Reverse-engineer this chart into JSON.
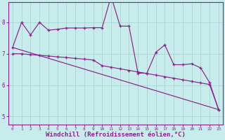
{
  "background_color": "#c8ecec",
  "line_color": "#882288",
  "grid_color": "#b8dada",
  "xlabel": "Windchill (Refroidissement éolien,°C)",
  "xlabel_fontsize": 6.5,
  "ylim": [
    4.75,
    8.65
  ],
  "xlim": [
    -0.5,
    23.5
  ],
  "yticks": [
    5,
    6,
    7,
    8
  ],
  "s1": [
    7.2,
    8.0,
    7.6,
    8.0,
    7.75,
    7.78,
    7.82,
    7.82,
    7.82,
    7.83,
    7.83,
    8.83,
    7.88,
    7.88,
    6.38,
    6.38,
    7.05,
    7.28,
    6.65,
    6.65,
    6.68,
    6.55,
    6.08,
    5.22
  ],
  "s2": [
    7.0,
    7.0,
    6.97,
    6.95,
    6.93,
    6.9,
    6.88,
    6.85,
    6.83,
    6.8,
    6.62,
    6.57,
    6.52,
    6.47,
    6.42,
    6.37,
    6.32,
    6.27,
    6.22,
    6.17,
    6.12,
    6.07,
    6.02,
    5.22
  ],
  "s3_x0": 0,
  "s3_y0": 7.2,
  "s3_x1": 23,
  "s3_y1": 5.22
}
